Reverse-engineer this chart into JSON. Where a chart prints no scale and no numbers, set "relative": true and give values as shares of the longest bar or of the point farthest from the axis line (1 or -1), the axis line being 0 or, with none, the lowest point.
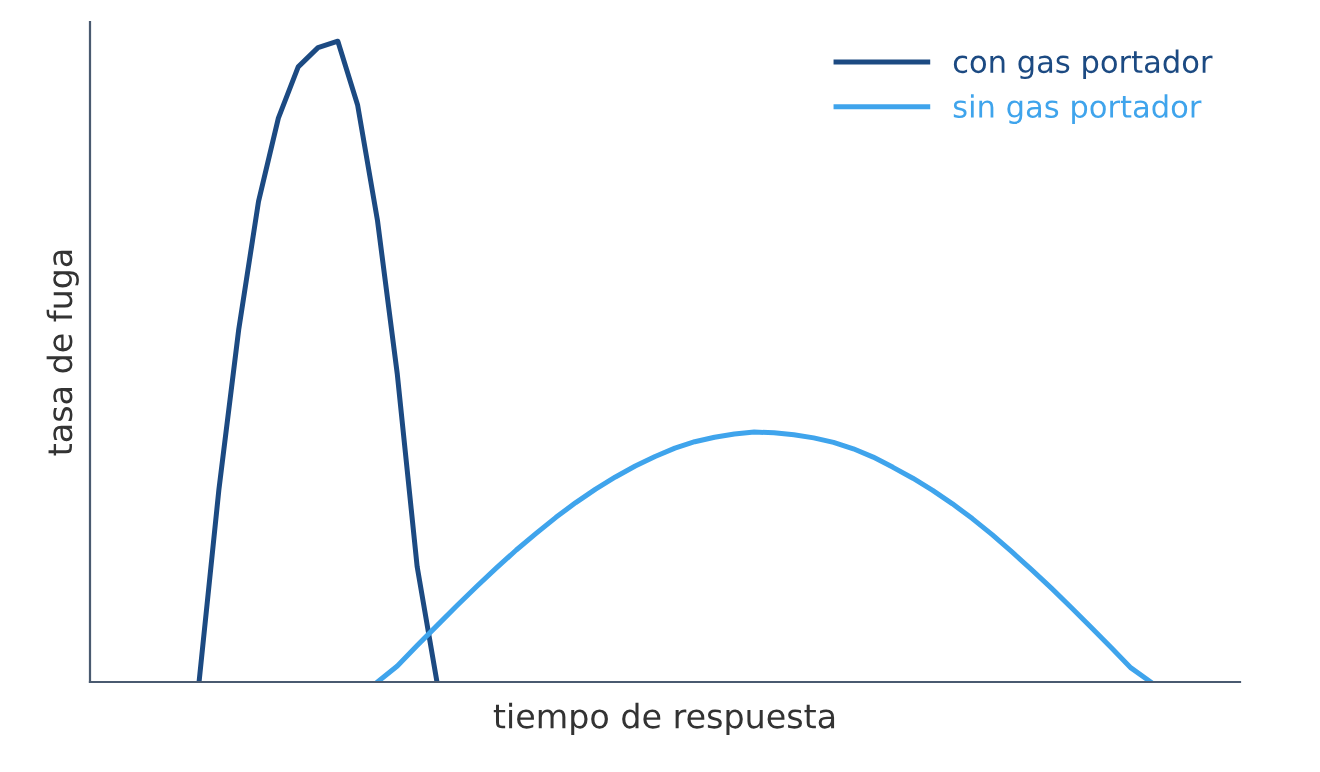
{
  "chart_data": {
    "type": "line",
    "relative": true,
    "xlabel": "tiempo de respuesta",
    "ylabel": "tasa de fuga",
    "categories": [
      null,
      null,
      null,
      null,
      null,
      null,
      null,
      null,
      null,
      null,
      null,
      null,
      null,
      null,
      null,
      null,
      null,
      null,
      null,
      null,
      null,
      null,
      null,
      null,
      null,
      null,
      null,
      null,
      null,
      null,
      null,
      null,
      null,
      null,
      null,
      null,
      null,
      null,
      null,
      null,
      null,
      null,
      null,
      null,
      null,
      null,
      null,
      null,
      null,
      null,
      null,
      null,
      null,
      null,
      null,
      null,
      null,
      null
    ],
    "series": [
      {
        "name": "con gas portador",
        "color": "#1c4a82",
        "values": [
          null,
          null,
          null,
          null,
          null,
          0,
          0.3,
          0.55,
          0.75,
          0.88,
          0.96,
          0.99,
          1,
          0.9,
          0.72,
          0.48,
          0.18,
          0,
          null,
          null,
          null,
          null,
          null,
          null,
          null,
          null,
          null,
          null,
          null,
          null,
          null,
          null,
          null,
          null,
          null,
          null,
          null,
          null,
          null,
          null,
          null,
          null,
          null,
          null,
          null,
          null,
          null,
          null,
          null,
          null,
          null,
          null,
          null,
          null,
          null,
          null,
          null,
          null
        ]
      },
      {
        "name": "sin gas portador",
        "color": "#3fa4ec",
        "values": [
          null,
          null,
          null,
          null,
          null,
          null,
          null,
          null,
          null,
          null,
          null,
          null,
          null,
          null,
          0,
          0.025,
          0.057,
          0.088,
          0.119,
          0.149,
          0.178,
          0.206,
          0.232,
          0.257,
          0.28,
          0.301,
          0.32,
          0.337,
          0.352,
          0.365,
          0.375,
          0.382,
          0.387,
          0.39,
          0.389,
          0.386,
          0.381,
          0.374,
          0.364,
          0.351,
          0.335,
          0.318,
          0.299,
          0.278,
          0.255,
          0.23,
          0.203,
          0.175,
          0.146,
          0.116,
          0.085,
          0.054,
          0.022,
          0,
          null,
          null,
          null,
          null
        ]
      }
    ],
    "legend": "top right",
    "grid": false,
    "marker": "none",
    "line_style": "solid"
  }
}
